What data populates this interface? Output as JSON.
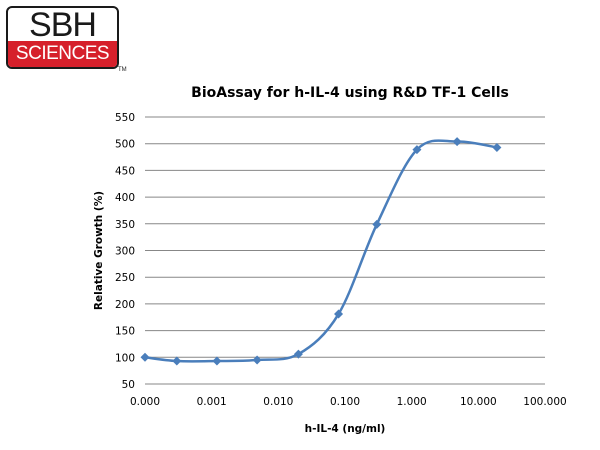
{
  "logo": {
    "top_text": "SBH",
    "bottom_text": "SCIENCES",
    "tm": "TM"
  },
  "chart_data": {
    "type": "line",
    "title": "BioAssay for h-IL-4 using R&D TF-1 Cells",
    "xlabel": "h-IL-4 (ng/ml)",
    "ylabel": "Relative Growth (%)",
    "xscale": "log",
    "x_tick_labels": [
      "0.000",
      "0.001",
      "0.010",
      "0.100",
      "1.000",
      "10.000",
      "100.000"
    ],
    "y_tick_labels": [
      "50",
      "100",
      "150",
      "200",
      "250",
      "300",
      "350",
      "400",
      "450",
      "500",
      "550"
    ],
    "ylim": [
      50,
      550
    ],
    "grid": "horizontal",
    "legend": "none",
    "series": [
      {
        "color": "#4a7ebb",
        "marker": "diamond",
        "smooth": true,
        "points": [
          {
            "x": 0.0001,
            "y": 100
          },
          {
            "x": 0.0003,
            "y": 93
          },
          {
            "x": 0.0012,
            "y": 93
          },
          {
            "x": 0.0048,
            "y": 95
          },
          {
            "x": 0.02,
            "y": 106
          },
          {
            "x": 0.08,
            "y": 181
          },
          {
            "x": 0.3,
            "y": 349
          },
          {
            "x": 1.2,
            "y": 489
          },
          {
            "x": 4.8,
            "y": 504
          },
          {
            "x": 19,
            "y": 493
          }
        ]
      }
    ]
  }
}
